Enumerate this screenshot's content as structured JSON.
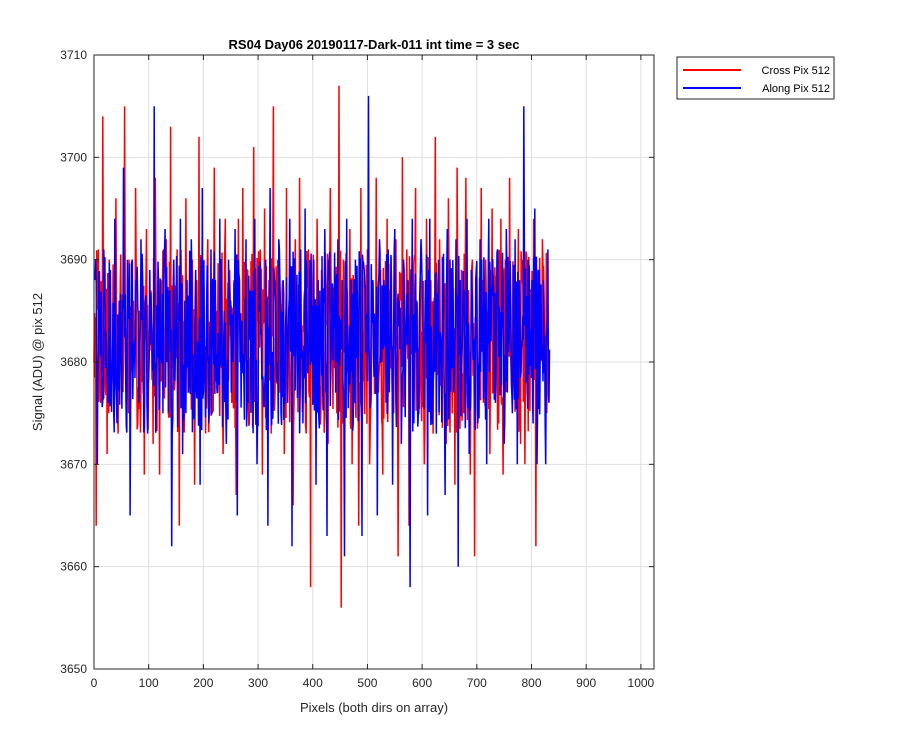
{
  "chart_data": {
    "type": "line",
    "title": "RS04 Day06 20190117-Dark-011 int time = 3 sec",
    "xlabel": "Pixels (both dirs on array)",
    "ylabel": "Signal (ADU) @ pix 512",
    "xlim": [
      0,
      1024
    ],
    "ylim": [
      3650,
      3710
    ],
    "xticks": [
      0,
      100,
      200,
      300,
      400,
      500,
      600,
      700,
      800,
      900,
      1000
    ],
    "yticks": [
      3650,
      3660,
      3670,
      3680,
      3690,
      3700,
      3710
    ],
    "grid": true,
    "legend_position": "outside-top-right",
    "series": [
      {
        "name": "Cross Pix 512",
        "color": "#ff0000",
        "mean": 3682,
        "x_start": 0,
        "x_step": 4,
        "values": [
          3680,
          3664,
          3691,
          3676,
          3704,
          3683,
          3671,
          3690,
          3678,
          3685,
          3696,
          3673,
          3688,
          3682,
          3705,
          3676,
          3690,
          3679,
          3686,
          3697,
          3674,
          3684,
          3689,
          3669,
          3693,
          3680,
          3687,
          3672,
          3698,
          3683,
          3669,
          3688,
          3679,
          3692,
          3675,
          3703,
          3682,
          3678,
          3691,
          3664,
          3686,
          3684,
          3696,
          3677,
          3683,
          3690,
          3668,
          3688,
          3702,
          3680,
          3687,
          3673,
          3692,
          3681,
          3675,
          3699,
          3685,
          3679,
          3690,
          3671,
          3694,
          3683,
          3689,
          3676,
          3688,
          3667,
          3694,
          3681,
          3697,
          3680,
          3689,
          3674,
          3686,
          3701,
          3679,
          3684,
          3691,
          3669,
          3695,
          3680,
          3688,
          3673,
          3705,
          3681,
          3690,
          3677,
          3687,
          3671,
          3697,
          3684,
          3678,
          3666,
          3692,
          3682,
          3698,
          3679,
          3686,
          3673,
          3691,
          3658,
          3688,
          3682,
          3694,
          3676,
          3689,
          3681,
          3685,
          3672,
          3697,
          3680,
          3687,
          3675,
          3707,
          3656,
          3690,
          3682,
          3679,
          3693,
          3670,
          3686,
          3688,
          3664,
          3697,
          3683,
          3681,
          3691,
          3670,
          3686,
          3683,
          3698,
          3677,
          3689,
          3669,
          3681,
          3694,
          3679,
          3688,
          3675,
          3692,
          3661,
          3686,
          3700,
          3680,
          3691,
          3664,
          3689,
          3682,
          3697,
          3676,
          3686,
          3683,
          3670,
          3694,
          3681,
          3688,
          3673,
          3702,
          3680,
          3692,
          3678,
          3687,
          3672,
          3696,
          3683,
          3688,
          3668,
          3699,
          3681,
          3689,
          3675,
          3698,
          3683,
          3669,
          3690,
          3661,
          3688,
          3681,
          3697,
          3676,
          3690,
          3683,
          3671,
          3695,
          3682,
          3688,
          3674,
          3694,
          3669,
          3690,
          3681,
          3698,
          3677,
          3688,
          3683,
          3693,
          3672,
          3690,
          3670,
          3682,
          3688,
          3679,
          3694,
          3662,
          3686,
          3683,
          3692,
          3680,
          3675
        ]
      },
      {
        "name": "Along Pix 512",
        "color": "#0000ff",
        "mean": 3682,
        "x_start": 2,
        "x_step": 4,
        "values": [
          3688,
          3670,
          3685,
          3679,
          3691,
          3683,
          3676,
          3689,
          3680,
          3694,
          3674,
          3686,
          3681,
          3699,
          3678,
          3685,
          3665,
          3690,
          3682,
          3688,
          3676,
          3692,
          3681,
          3686,
          3673,
          3689,
          3683,
          3705,
          3677,
          3688,
          3681,
          3675,
          3693,
          3680,
          3687,
          3662,
          3690,
          3684,
          3678,
          3694,
          3671,
          3686,
          3688,
          3680,
          3692,
          3675,
          3689,
          3682,
          3668,
          3697,
          3680,
          3686,
          3674,
          3691,
          3683,
          3688,
          3677,
          3694,
          3681,
          3685,
          3672,
          3690,
          3686,
          3680,
          3693,
          3665,
          3688,
          3683,
          3679,
          3692,
          3676,
          3687,
          3682,
          3694,
          3670,
          3689,
          3683,
          3676,
          3690,
          3664,
          3697,
          3681,
          3688,
          3678,
          3692,
          3675,
          3688,
          3683,
          3676,
          3694,
          3662,
          3688,
          3684,
          3679,
          3691,
          3674,
          3695,
          3682,
          3687,
          3680,
          3690,
          3668,
          3688,
          3683,
          3678,
          3693,
          3663,
          3690,
          3682,
          3686,
          3677,
          3692,
          3681,
          3688,
          3661,
          3694,
          3681,
          3688,
          3674,
          3690,
          3683,
          3688,
          3663,
          3689,
          3682,
          3706,
          3677,
          3688,
          3684,
          3665,
          3692,
          3680,
          3688,
          3676,
          3691,
          3682,
          3668,
          3693,
          3680,
          3686,
          3672,
          3690,
          3683,
          3688,
          3658,
          3694,
          3681,
          3686,
          3675,
          3692,
          3683,
          3688,
          3665,
          3694,
          3680,
          3686,
          3673,
          3690,
          3682,
          3688,
          3667,
          3693,
          3681,
          3689,
          3677,
          3692,
          3660,
          3688,
          3683,
          3679,
          3694,
          3671,
          3689,
          3682,
          3688,
          3674,
          3692,
          3681,
          3685,
          3670,
          3694,
          3682,
          3688,
          3676,
          3691,
          3683,
          3688,
          3672,
          3693,
          3681,
          3686,
          3679,
          3692,
          3670,
          3688,
          3682,
          3705,
          3678,
          3690,
          3683,
          3676,
          3695,
          3670,
          3689,
          3682,
          3688,
          3670,
          3691
        ]
      }
    ]
  }
}
